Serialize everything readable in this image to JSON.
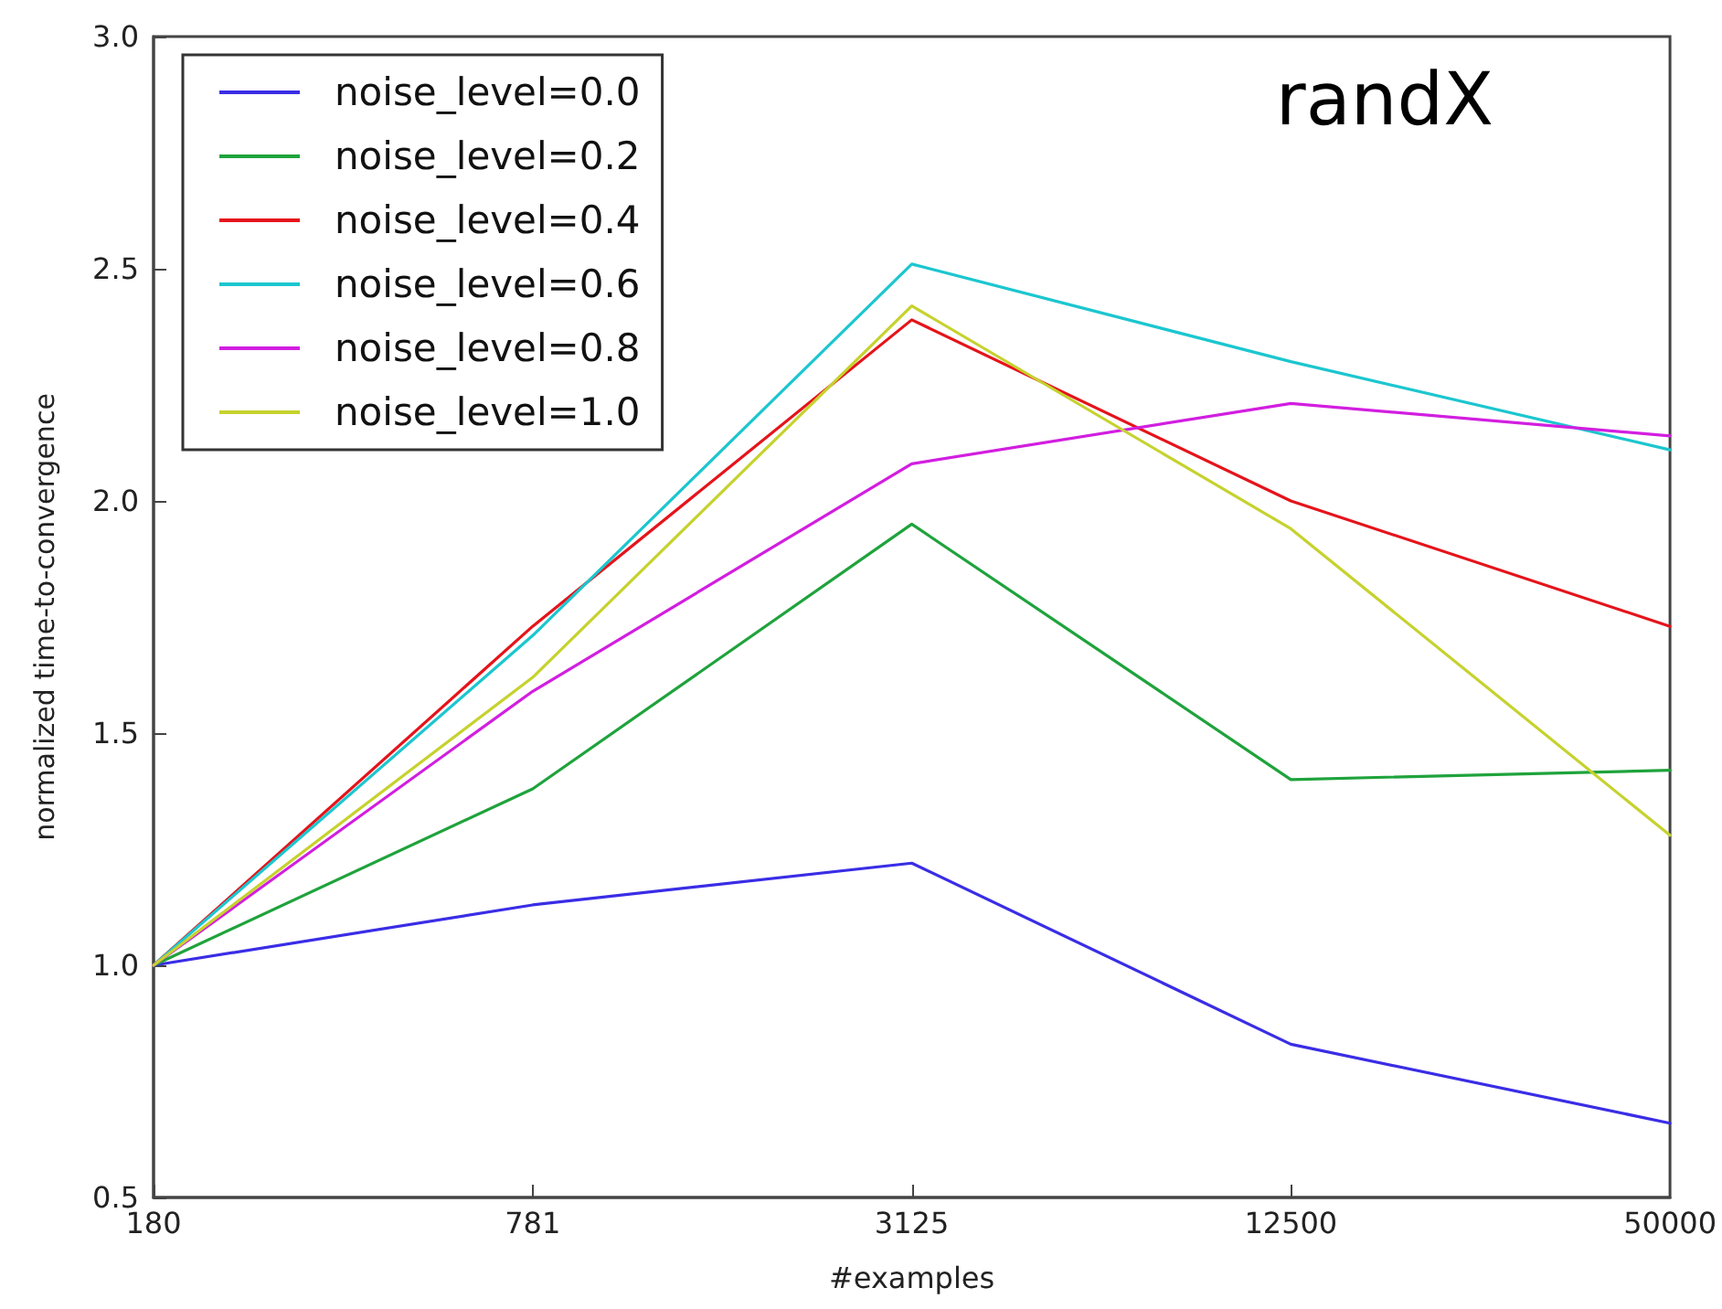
{
  "chart_data": {
    "type": "line",
    "xlabel": "#examples",
    "ylabel": "normalized time-to-convergence",
    "categories": [
      "180",
      "781",
      "3125",
      "12500",
      "50000"
    ],
    "series": [
      {
        "name": "noise_level=0.0",
        "color": "#3a2de6",
        "values": [
          1.0,
          1.13,
          1.22,
          0.83,
          0.66
        ]
      },
      {
        "name": "noise_level=0.2",
        "color": "#1fa33c",
        "values": [
          1.0,
          1.38,
          1.95,
          1.4,
          1.42
        ]
      },
      {
        "name": "noise_level=0.4",
        "color": "#e5141b",
        "values": [
          1.0,
          1.73,
          2.39,
          2.0,
          1.73
        ]
      },
      {
        "name": "noise_level=0.6",
        "color": "#1cc6cf",
        "values": [
          1.0,
          1.71,
          2.51,
          2.3,
          2.11
        ]
      },
      {
        "name": "noise_level=0.8",
        "color": "#d21ee0",
        "values": [
          1.0,
          1.59,
          2.08,
          2.21,
          2.14
        ]
      },
      {
        "name": "noise_level=1.0",
        "color": "#c6d22e",
        "values": [
          1.0,
          1.62,
          2.42,
          1.94,
          1.28
        ]
      }
    ],
    "ylim": [
      0.5,
      3.0
    ],
    "yticks": [
      0.5,
      {
        "value": 1,
        "label": "1.0"
      },
      1.5,
      {
        "value": 2,
        "label": "2.0"
      },
      2.5,
      {
        "value": 3,
        "label": "3.0"
      }
    ],
    "annotations": [
      "randX"
    ],
    "legend": "top left",
    "grid": false,
    "marker": "none",
    "line_style": "solid"
  }
}
